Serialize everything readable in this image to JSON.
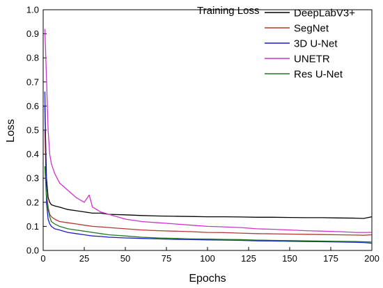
{
  "chart_data": {
    "type": "line",
    "title": "Training Loss",
    "xlabel": "Epochs",
    "ylabel": "Loss",
    "xlim": [
      0,
      200
    ],
    "ylim": [
      0.0,
      1.0
    ],
    "xticks": [
      0,
      25,
      50,
      75,
      100,
      125,
      150,
      175,
      200
    ],
    "xtick_labels": [
      "0",
      "25",
      "50",
      "75",
      "100",
      "125",
      "150",
      "175",
      "200"
    ],
    "yticks": [
      0.0,
      0.1,
      0.2,
      0.3,
      0.4,
      0.5,
      0.6,
      0.7,
      0.8,
      0.9,
      1.0
    ],
    "ytick_labels": [
      "0.0",
      "0.1",
      "0.2",
      "0.3",
      "0.4",
      "0.5",
      "0.6",
      "0.7",
      "0.8",
      "0.9",
      "1.0"
    ],
    "grid": false,
    "legend_position": "top-right",
    "series": [
      {
        "name": "DeepLabV3+",
        "color": "#000000",
        "x": [
          1,
          2,
          3,
          4,
          5,
          7,
          10,
          15,
          20,
          25,
          30,
          35,
          40,
          50,
          60,
          70,
          80,
          90,
          100,
          110,
          120,
          130,
          140,
          150,
          160,
          170,
          180,
          190,
          195,
          200
        ],
        "y": [
          0.6,
          0.3,
          0.22,
          0.2,
          0.19,
          0.185,
          0.18,
          0.17,
          0.165,
          0.16,
          0.155,
          0.155,
          0.15,
          0.148,
          0.145,
          0.143,
          0.142,
          0.141,
          0.14,
          0.14,
          0.139,
          0.138,
          0.138,
          0.137,
          0.136,
          0.136,
          0.135,
          0.134,
          0.133,
          0.14
        ]
      },
      {
        "name": "SegNet",
        "color": "#b03a2e",
        "x": [
          1,
          2,
          3,
          4,
          5,
          7,
          10,
          15,
          20,
          25,
          30,
          35,
          40,
          50,
          60,
          70,
          80,
          90,
          100,
          110,
          120,
          130,
          140,
          150,
          160,
          170,
          180,
          190,
          195,
          200
        ],
        "y": [
          0.5,
          0.24,
          0.18,
          0.15,
          0.14,
          0.13,
          0.12,
          0.115,
          0.11,
          0.105,
          0.1,
          0.098,
          0.095,
          0.09,
          0.085,
          0.082,
          0.08,
          0.078,
          0.075,
          0.074,
          0.072,
          0.07,
          0.069,
          0.068,
          0.067,
          0.066,
          0.065,
          0.064,
          0.063,
          0.065
        ]
      },
      {
        "name": "3D U-Net",
        "color": "#1a1acc",
        "x": [
          1,
          2,
          3,
          4,
          5,
          7,
          10,
          15,
          20,
          25,
          30,
          35,
          40,
          50,
          60,
          70,
          80,
          90,
          100,
          110,
          120,
          130,
          140,
          150,
          160,
          170,
          180,
          190,
          195,
          200
        ],
        "y": [
          0.66,
          0.2,
          0.13,
          0.11,
          0.1,
          0.09,
          0.085,
          0.075,
          0.07,
          0.065,
          0.06,
          0.058,
          0.055,
          0.052,
          0.05,
          0.048,
          0.046,
          0.045,
          0.044,
          0.043,
          0.042,
          0.04,
          0.039,
          0.038,
          0.037,
          0.036,
          0.035,
          0.034,
          0.033,
          0.03
        ]
      },
      {
        "name": "UNETR",
        "color": "#cc33cc",
        "x": [
          1,
          2,
          3,
          4,
          5,
          7,
          10,
          15,
          20,
          25,
          28,
          30,
          35,
          40,
          50,
          60,
          70,
          80,
          90,
          100,
          110,
          120,
          130,
          140,
          150,
          160,
          170,
          180,
          190,
          200
        ],
        "y": [
          0.92,
          0.72,
          0.5,
          0.4,
          0.36,
          0.32,
          0.28,
          0.25,
          0.22,
          0.2,
          0.23,
          0.18,
          0.16,
          0.15,
          0.13,
          0.12,
          0.115,
          0.11,
          0.105,
          0.1,
          0.098,
          0.095,
          0.09,
          0.088,
          0.085,
          0.082,
          0.08,
          0.078,
          0.075,
          0.075
        ]
      },
      {
        "name": "Res U-Net",
        "color": "#1f7a1f",
        "x": [
          1,
          2,
          3,
          4,
          5,
          7,
          10,
          15,
          20,
          25,
          30,
          35,
          40,
          50,
          60,
          70,
          80,
          90,
          100,
          110,
          120,
          130,
          140,
          150,
          160,
          170,
          180,
          190,
          195,
          200
        ],
        "y": [
          0.35,
          0.22,
          0.17,
          0.14,
          0.12,
          0.11,
          0.1,
          0.09,
          0.085,
          0.08,
          0.075,
          0.07,
          0.065,
          0.06,
          0.055,
          0.052,
          0.05,
          0.048,
          0.047,
          0.046,
          0.045,
          0.043,
          0.042,
          0.041,
          0.04,
          0.039,
          0.038,
          0.037,
          0.036,
          0.035
        ]
      }
    ]
  }
}
